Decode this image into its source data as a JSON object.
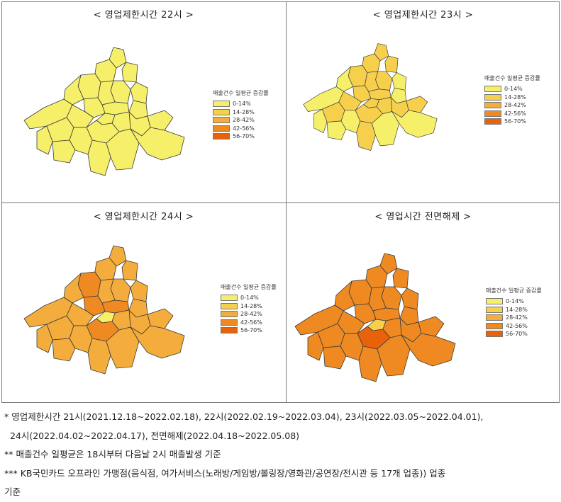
{
  "legend": {
    "title": "매출건수 일평균 증감률",
    "bins": [
      {
        "label": "0-14%",
        "color": "#f6ef6a"
      },
      {
        "label": "14-28%",
        "color": "#f6cf4c"
      },
      {
        "label": "28-42%",
        "color": "#f4ad3c"
      },
      {
        "label": "42-56%",
        "color": "#ef8a22"
      },
      {
        "label": "56-70%",
        "color": "#e8620b"
      }
    ]
  },
  "chart_data": [
    {
      "type": "choropleth",
      "title": "< 영업제한시간 22시 >",
      "district_classes": [
        0,
        0,
        0,
        0,
        0,
        0,
        0,
        0,
        0,
        0,
        0,
        0,
        0,
        0,
        0,
        0,
        0,
        0,
        0,
        0,
        0,
        0,
        0,
        0,
        0
      ]
    },
    {
      "type": "choropleth",
      "title": "< 영업제한시간 23시 >",
      "district_classes": [
        1,
        1,
        1,
        0,
        1,
        1,
        1,
        0,
        1,
        1,
        0,
        1,
        1,
        1,
        0,
        1,
        1,
        1,
        1,
        0,
        0,
        0,
        1,
        0,
        0
      ]
    },
    {
      "type": "choropleth",
      "title": "< 영업제한시간 24시 >",
      "district_classes": [
        2,
        2,
        2,
        2,
        2,
        3,
        2,
        2,
        3,
        3,
        2,
        2,
        2,
        2,
        2,
        2,
        2,
        0,
        3,
        2,
        2,
        2,
        2,
        2,
        2
      ]
    },
    {
      "type": "choropleth",
      "title": "< 영업시간 전면해제 >",
      "district_classes": [
        3,
        3,
        3,
        3,
        3,
        3,
        3,
        3,
        3,
        3,
        3,
        3,
        3,
        3,
        3,
        3,
        3,
        1,
        4,
        3,
        3,
        3,
        3,
        3,
        3
      ]
    }
  ],
  "notes": [
    "* 영업제한시간 21시(2021.12.18~2022.02.18), 22시(2022.02.19~2022.03.04), 23시(2022.03.05~2022.04.01),",
    "  24시(2022.04.02~2022.04.17), 전면해제(2022.04.18~2022.05.08)",
    "** 매출건수 일평균은 18시부터 다음날 2시 매출발생 기준",
    "***  KB국민카드 오프라인 가맹점(음식점, 여가서비스(노래방/게임방/볼링장/영화관/공연장/전시관 등 17개 업종)) 업종",
    "기준"
  ]
}
